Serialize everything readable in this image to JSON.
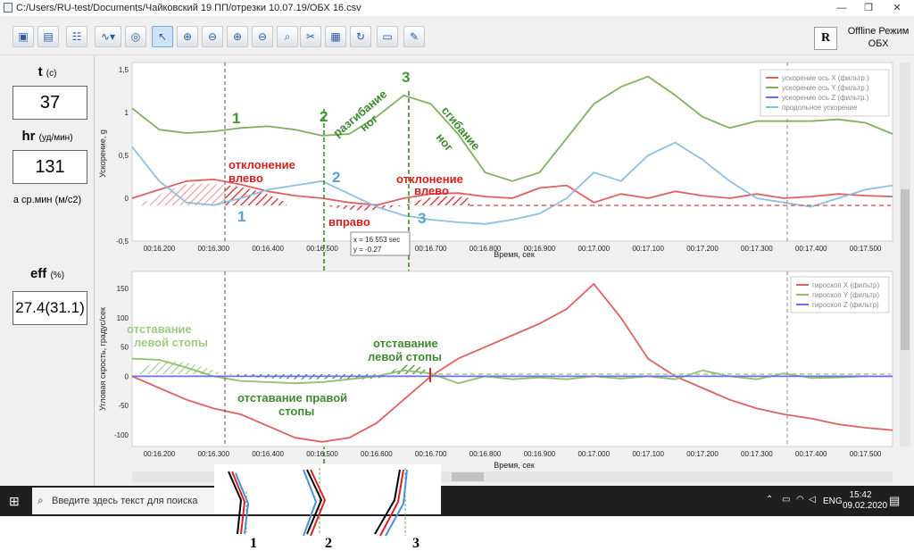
{
  "window": {
    "title": "C:/Users/RU-test/Documents/Чайковский 19 ПП/отрезки  10.07.19/ОБХ 16.csv"
  },
  "toolbar": {
    "offline_btn": "R",
    "offline_label": "Offline Режим ОБХ"
  },
  "left_panel": {
    "t_label": "t",
    "t_unit": "(с)",
    "t_value": "37",
    "hr_label": "hr",
    "hr_unit": "(уд/мин)",
    "hr_value": "131",
    "accel_note": "а ср.мин (м/с2)",
    "eff_label": "eff",
    "eff_unit": "(%)",
    "eff_value": "27.4(31.1)"
  },
  "top_chart": {
    "ylabel": "Ускорение, g",
    "xlabel": "Время, сек",
    "yticks": [
      "1,5",
      "1",
      "0,5",
      "0",
      "-0,5"
    ],
    "xticks": [
      "00:16.200",
      "00:16.300",
      "00:16.400",
      "00:16.500",
      "00:16.600",
      "00:16.700",
      "00:16.800",
      "00:16.900",
      "00:17.000",
      "00:17.100",
      "00:17.200",
      "00:17.300",
      "00:17.400",
      "00:17.500"
    ],
    "legend": [
      "ускорение ось X (фильтр.)",
      "ускорение ось Y (фильтр.)",
      "ускорение ось Z (фильтр.)",
      "продольное ускорение"
    ],
    "tooltip_x": "x = 16.553 sec",
    "tooltip_y": "y = -0.27",
    "annot": {
      "n1": "1",
      "n2": "2",
      "n3": "3",
      "b1": "1",
      "b2": "2",
      "b3": "3",
      "bend": "разгибание",
      "legs1": "ног",
      "flex": "сгибание",
      "legs2": "ног",
      "dev_left1": "отклонение",
      "dev_left1b": "влево",
      "dev_right": "вправо",
      "dev_left2": "отклонение",
      "dev_left2b": "влево"
    }
  },
  "bottom_chart": {
    "ylabel": "Угловая скрость, градус/сек",
    "xlabel": "Время, сек",
    "yticks": [
      "150",
      "100",
      "50",
      "0",
      "-50",
      "-100"
    ],
    "xticks": [
      "00:16.200",
      "00:16.300",
      "00:16.400",
      "00:16.500",
      "00:16.600",
      "00:16.700",
      "00:16.800",
      "00:16.900",
      "00:17.000",
      "00:17.100",
      "00:17.200",
      "00:17.300",
      "00:17.400",
      "00:17.500"
    ],
    "legend": [
      "гироскоп X (фильтр)",
      "гироскоп Y (фильтр)",
      "гироскоп Z (фильтр)"
    ],
    "annot": {
      "lag_left1": "отставание",
      "lag_left1b": "левой  стопы",
      "lag_right": "отставание правой",
      "lag_rightb": "стопы",
      "lag_left2": "отставание",
      "lag_left2b": "левой  стопы"
    }
  },
  "taskbar": {
    "search_placeholder": "Введите здесь текст для поиска",
    "lang": "ENG",
    "time": "15:42",
    "date": "09.02.2020"
  },
  "inset": {
    "labels": [
      "1",
      "2",
      "3"
    ]
  },
  "chart_data": [
    {
      "type": "line",
      "title": "",
      "xlabel": "Время, сек",
      "ylabel": "Ускорение, g",
      "xlim": [
        16.15,
        17.55
      ],
      "ylim": [
        -0.5,
        1.5
      ],
      "series": [
        {
          "name": "ускорение ось X (фильтр.)",
          "color": "#e06060",
          "x": [
            16.15,
            16.2,
            16.25,
            16.3,
            16.35,
            16.4,
            16.45,
            16.5,
            16.55,
            16.6,
            16.65,
            16.7,
            16.75,
            16.8,
            16.85,
            16.9,
            16.95,
            17.0,
            17.05,
            17.1,
            17.15,
            17.2,
            17.25,
            17.3,
            17.35,
            17.4,
            17.45,
            17.5,
            17.55
          ],
          "values": [
            0.0,
            0.1,
            0.2,
            0.22,
            0.16,
            0.08,
            0.03,
            0.0,
            -0.05,
            -0.08,
            0.0,
            0.05,
            0.06,
            0.02,
            0.0,
            0.12,
            0.15,
            -0.05,
            0.05,
            0.0,
            0.08,
            0.03,
            0.0,
            0.05,
            0.0,
            0.02,
            0.05,
            0.03,
            0.02
          ]
        },
        {
          "name": "ускорение ось Y (фильтр.)",
          "color": "#7fb060",
          "x": [
            16.15,
            16.2,
            16.25,
            16.3,
            16.35,
            16.4,
            16.45,
            16.5,
            16.55,
            16.6,
            16.65,
            16.7,
            16.75,
            16.8,
            16.85,
            16.9,
            16.95,
            17.0,
            17.05,
            17.1,
            17.15,
            17.2,
            17.25,
            17.3,
            17.35,
            17.4,
            17.45,
            17.5,
            17.55
          ],
          "values": [
            1.05,
            0.8,
            0.76,
            0.78,
            0.82,
            0.84,
            0.8,
            0.73,
            0.75,
            0.95,
            1.2,
            1.1,
            0.75,
            0.3,
            0.2,
            0.3,
            0.7,
            1.1,
            1.3,
            1.42,
            1.2,
            0.95,
            0.82,
            0.9,
            0.9,
            0.9,
            0.92,
            0.88,
            0.75
          ]
        },
        {
          "name": "продольное ускорение",
          "color": "#8fbfe0",
          "x": [
            16.15,
            16.2,
            16.25,
            16.3,
            16.35,
            16.4,
            16.45,
            16.5,
            16.55,
            16.6,
            16.65,
            16.7,
            16.75,
            16.8,
            16.85,
            16.9,
            16.95,
            17.0,
            17.05,
            17.1,
            17.15,
            17.2,
            17.25,
            17.3,
            17.35,
            17.4,
            17.45,
            17.5,
            17.55
          ],
          "values": [
            0.6,
            0.2,
            -0.05,
            -0.08,
            0.0,
            0.1,
            0.15,
            0.2,
            0.05,
            -0.1,
            -0.2,
            -0.25,
            -0.28,
            -0.3,
            -0.25,
            -0.18,
            0.0,
            0.3,
            0.2,
            0.5,
            0.65,
            0.45,
            0.2,
            0.0,
            -0.05,
            -0.1,
            0.0,
            0.1,
            0.15
          ]
        }
      ]
    },
    {
      "type": "line",
      "title": "",
      "xlabel": "Время, сек",
      "ylabel": "Угловая скрость, градус/сек",
      "xlim": [
        16.15,
        17.55
      ],
      "ylim": [
        -120,
        170
      ],
      "series": [
        {
          "name": "гироскоп X (фильтр)",
          "color": "#e06060",
          "x": [
            16.15,
            16.2,
            16.25,
            16.3,
            16.35,
            16.4,
            16.45,
            16.5,
            16.55,
            16.6,
            16.65,
            16.7,
            16.75,
            16.8,
            16.85,
            16.9,
            16.95,
            17.0,
            17.05,
            17.1,
            17.15,
            17.2,
            17.25,
            17.3,
            17.35,
            17.4,
            17.45,
            17.5,
            17.55
          ],
          "values": [
            0,
            -20,
            -40,
            -55,
            -65,
            -85,
            -105,
            -112,
            -105,
            -80,
            -40,
            0,
            30,
            50,
            70,
            90,
            115,
            158,
            100,
            30,
            0,
            -20,
            -40,
            -55,
            -65,
            -72,
            -82,
            -88,
            -92
          ]
        },
        {
          "name": "гироскоп Y (фильтр)",
          "color": "#8fbf70",
          "x": [
            16.15,
            16.2,
            16.25,
            16.3,
            16.35,
            16.4,
            16.45,
            16.5,
            16.55,
            16.6,
            16.65,
            16.7,
            16.75,
            16.8,
            16.85,
            16.9,
            16.95,
            17.0,
            17.05,
            17.1,
            17.15,
            17.2,
            17.25,
            17.3,
            17.35,
            17.4,
            17.45,
            17.5,
            17.55
          ],
          "values": [
            30,
            28,
            15,
            0,
            -8,
            -10,
            -12,
            -10,
            -5,
            0,
            10,
            5,
            -12,
            0,
            -5,
            -2,
            -5,
            0,
            -4,
            0,
            -5,
            10,
            0,
            -5,
            5,
            -3,
            -2,
            0,
            0
          ]
        },
        {
          "name": "гироскоп Z (фильтр)",
          "color": "#6b6ee8",
          "x": [
            16.15,
            17.55
          ],
          "values": [
            0,
            0
          ]
        }
      ]
    }
  ]
}
